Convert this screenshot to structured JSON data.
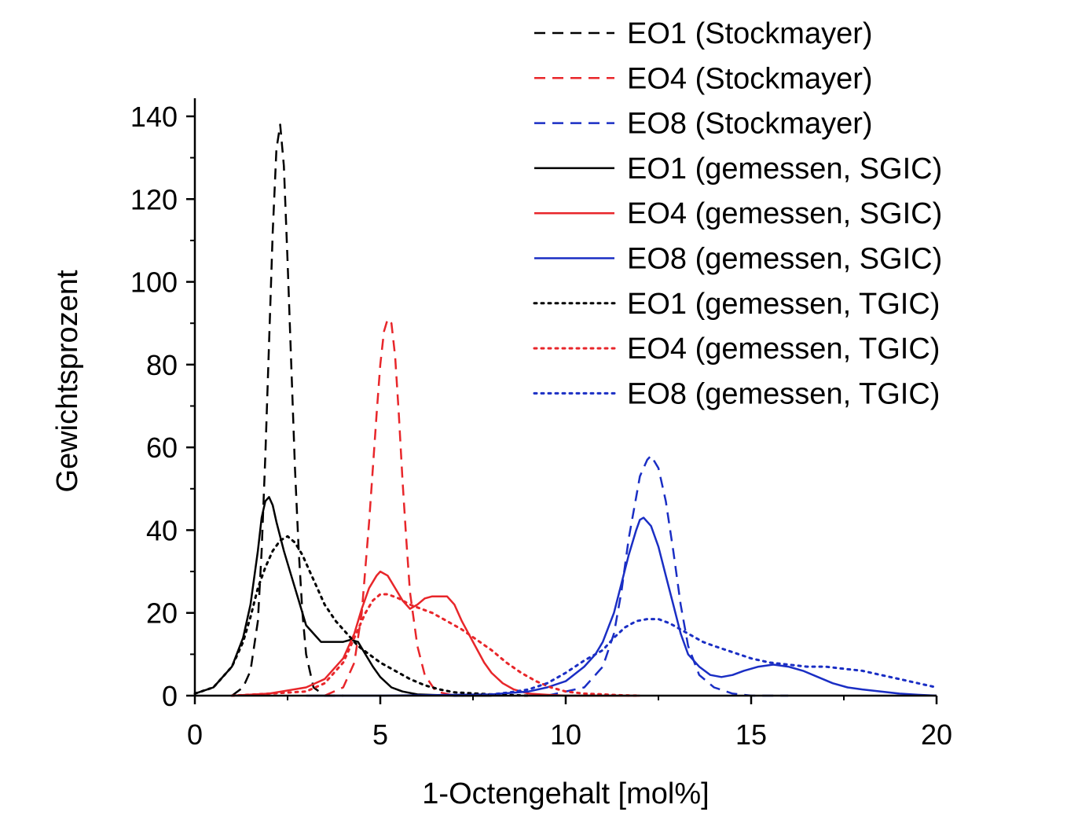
{
  "chart_data": {
    "type": "line",
    "title": "",
    "xlabel": "1-Octengehalt [mol%]",
    "ylabel": "Gewichtsprozent",
    "xlim": [
      0,
      20
    ],
    "ylim": [
      0,
      140
    ],
    "xticks": [
      0,
      5,
      10,
      15,
      20
    ],
    "yticks": [
      0,
      20,
      40,
      60,
      80,
      100,
      120,
      140
    ],
    "x_tick_labels": [
      "0",
      "5",
      "10",
      "15",
      "20"
    ],
    "y_tick_labels": [
      "0",
      "20",
      "40",
      "60",
      "80",
      "100",
      "120",
      "140"
    ],
    "grid": false,
    "legend_position": "top-right",
    "series": [
      {
        "name": "EO1 (Stockmayer)",
        "color": "#000000",
        "style": "dashed",
        "x": [
          1.0,
          1.3,
          1.5,
          1.7,
          1.8,
          1.9,
          2.0,
          2.1,
          2.2,
          2.3,
          2.4,
          2.5,
          2.6,
          2.7,
          2.8,
          2.9,
          3.0,
          3.2,
          3.5,
          4.0
        ],
        "y": [
          0,
          2,
          6,
          18,
          35,
          58,
          85,
          112,
          132,
          138,
          128,
          105,
          80,
          55,
          35,
          20,
          10,
          2,
          0,
          0
        ]
      },
      {
        "name": "EO4 (Stockmayer)",
        "color": "#e8262a",
        "style": "dashed",
        "x": [
          3.5,
          4.0,
          4.3,
          4.5,
          4.7,
          4.9,
          5.0,
          5.1,
          5.2,
          5.3,
          5.4,
          5.5,
          5.6,
          5.7,
          5.8,
          6.0,
          6.2,
          6.5,
          7.0
        ],
        "y": [
          0,
          2,
          8,
          20,
          42,
          68,
          80,
          88,
          91,
          90,
          82,
          68,
          52,
          38,
          25,
          12,
          5,
          1,
          0
        ]
      },
      {
        "name": "EO8 (Stockmayer)",
        "color": "#1a2ec4",
        "style": "dashed",
        "x": [
          9.5,
          10.5,
          11.0,
          11.3,
          11.5,
          11.7,
          11.9,
          12.0,
          12.2,
          12.3,
          12.5,
          12.7,
          12.9,
          13.1,
          13.3,
          13.6,
          14.0,
          14.5,
          15.0,
          16.0
        ],
        "y": [
          0,
          2,
          7,
          15,
          25,
          38,
          48,
          53,
          57,
          58,
          55,
          47,
          35,
          22,
          12,
          5,
          2,
          0.5,
          0,
          0
        ]
      },
      {
        "name": "EO1 (gemessen, SGIC)",
        "color": "#000000",
        "style": "solid",
        "x": [
          0.0,
          0.5,
          1.0,
          1.3,
          1.5,
          1.7,
          1.8,
          1.9,
          2.0,
          2.1,
          2.2,
          2.4,
          2.6,
          2.8,
          3.0,
          3.2,
          3.4,
          3.6,
          3.8,
          4.0,
          4.2,
          4.4,
          4.6,
          4.8,
          5.0,
          5.3,
          5.6,
          6.0,
          7.0,
          8.0
        ],
        "y": [
          0.5,
          2,
          7,
          14,
          22,
          35,
          43,
          47,
          48,
          46,
          42,
          35,
          29,
          23,
          17,
          15,
          13,
          13,
          13,
          13,
          13.5,
          13,
          10,
          7,
          4.5,
          2,
          1,
          0.3,
          0,
          0
        ]
      },
      {
        "name": "EO4 (gemessen, SGIC)",
        "color": "#e8262a",
        "style": "solid",
        "x": [
          1.0,
          2.0,
          3.0,
          3.5,
          4.0,
          4.3,
          4.5,
          4.7,
          4.9,
          5.0,
          5.2,
          5.4,
          5.6,
          5.8,
          6.0,
          6.2,
          6.4,
          6.6,
          6.8,
          7.0,
          7.2,
          7.5,
          7.8,
          8.0,
          8.3,
          8.6,
          9.0,
          9.5,
          10.0,
          11.0,
          12.0
        ],
        "y": [
          0,
          0.5,
          2,
          4,
          9,
          15,
          21,
          26,
          29,
          30,
          29,
          26,
          23,
          21,
          22,
          23.5,
          24,
          24,
          24,
          22,
          18,
          13,
          8,
          5.5,
          3,
          1.5,
          0.5,
          0.2,
          0,
          0,
          0
        ]
      },
      {
        "name": "EO8 (gemessen, SGIC)",
        "color": "#1a2ec4",
        "style": "solid",
        "x": [
          3.0,
          5.0,
          8.0,
          9.0,
          9.5,
          10.0,
          10.5,
          10.8,
          11.0,
          11.3,
          11.5,
          11.7,
          11.9,
          12.0,
          12.1,
          12.3,
          12.5,
          12.7,
          12.9,
          13.1,
          13.3,
          13.6,
          13.9,
          14.2,
          14.5,
          14.8,
          15.2,
          15.6,
          16.0,
          16.4,
          16.8,
          17.2,
          17.6,
          18.0,
          18.5,
          19.0,
          19.5,
          20.0
        ],
        "y": [
          0,
          0,
          0.3,
          1,
          2,
          3.5,
          7,
          10,
          13,
          20,
          27,
          34,
          40,
          42.5,
          43,
          41,
          36,
          29,
          22,
          15,
          10,
          7,
          5,
          4.5,
          5,
          6,
          7,
          7.5,
          7,
          6,
          4.5,
          3,
          2,
          1.5,
          1,
          0.5,
          0.2,
          0
        ]
      },
      {
        "name": "EO1 (gemessen, TGIC)",
        "color": "#000000",
        "style": "dotted",
        "x": [
          0.0,
          0.5,
          1.0,
          1.3,
          1.5,
          1.7,
          1.9,
          2.1,
          2.3,
          2.5,
          2.7,
          2.9,
          3.1,
          3.3,
          3.5,
          3.8,
          4.1,
          4.4,
          4.7,
          5.0,
          5.4,
          5.8,
          6.2,
          6.6,
          7.0,
          8.0,
          9.0
        ],
        "y": [
          0.5,
          2,
          7,
          13,
          19,
          26,
          31,
          35,
          37.5,
          38.5,
          37,
          34,
          30,
          26,
          22,
          18,
          15,
          12,
          10,
          8,
          6,
          4,
          2.5,
          1.5,
          0.8,
          0.3,
          0
        ]
      },
      {
        "name": "EO4 (gemessen, TGIC)",
        "color": "#e8262a",
        "style": "dotted",
        "x": [
          1.0,
          2.0,
          3.0,
          3.5,
          4.0,
          4.3,
          4.6,
          4.8,
          5.0,
          5.2,
          5.5,
          5.8,
          6.1,
          6.4,
          6.8,
          7.2,
          7.6,
          8.0,
          8.4,
          8.8,
          9.2,
          9.6,
          10.0,
          10.5,
          11.0,
          11.5,
          12.0
        ],
        "y": [
          0,
          0.5,
          1,
          3,
          8,
          14,
          20,
          23,
          24.5,
          24.5,
          23.5,
          22,
          21,
          20,
          18,
          16,
          13.5,
          11,
          8,
          5.5,
          3.5,
          2,
          1,
          0.5,
          0.3,
          0.1,
          0
        ]
      },
      {
        "name": "EO8 (gemessen, TGIC)",
        "color": "#1a2ec4",
        "style": "dotted",
        "x": [
          7.0,
          8.0,
          8.5,
          9.0,
          9.5,
          10.0,
          10.5,
          11.0,
          11.3,
          11.6,
          11.9,
          12.2,
          12.5,
          12.8,
          13.1,
          13.4,
          13.7,
          14.0,
          14.5,
          15.0,
          15.5,
          16.0,
          16.5,
          17.0,
          17.5,
          18.0,
          18.5,
          19.0,
          19.5,
          20.0
        ],
        "y": [
          0,
          0.3,
          0.8,
          1.5,
          3,
          5.5,
          8.5,
          11,
          14,
          16.5,
          18,
          18.5,
          18.5,
          17.5,
          16,
          14.5,
          13,
          12,
          10.5,
          9,
          8,
          7.5,
          7,
          7,
          6.5,
          6,
          5,
          4,
          3,
          2
        ]
      }
    ]
  }
}
